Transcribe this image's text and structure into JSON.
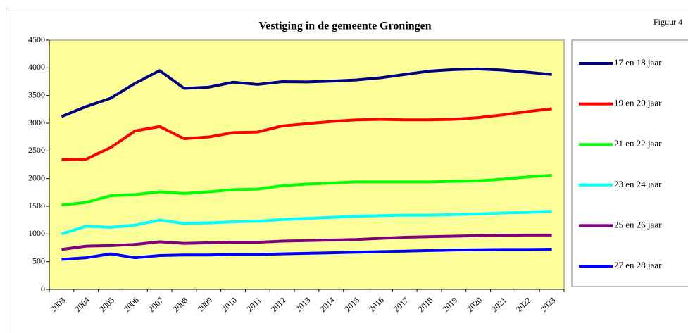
{
  "chart_data": {
    "type": "line",
    "title": "Vestiging in de gemeente Groningen",
    "annotation": "Figuur 4",
    "categories": [
      "2003",
      "2004",
      "2005",
      "2006",
      "2007",
      "2008",
      "2009",
      "2010",
      "2011",
      "2012",
      "2013",
      "2014",
      "2015",
      "2016",
      "2017",
      "2018",
      "2019",
      "2020",
      "2021",
      "2022",
      "2023"
    ],
    "series": [
      {
        "name": "17 en 18 jaar",
        "color": "#000080",
        "values": [
          3120,
          3300,
          3450,
          3720,
          3950,
          3630,
          3650,
          3740,
          3700,
          3750,
          3745,
          3760,
          3780,
          3820,
          3880,
          3940,
          3970,
          3980,
          3960,
          3920,
          3880
        ]
      },
      {
        "name": "19 en 20 jaar",
        "color": "#ff0000",
        "values": [
          2340,
          2350,
          2560,
          2860,
          2940,
          2720,
          2750,
          2830,
          2840,
          2950,
          2990,
          3030,
          3060,
          3070,
          3060,
          3060,
          3070,
          3100,
          3150,
          3210,
          3260
        ]
      },
      {
        "name": "21 en 22 jaar",
        "color": "#00ff00",
        "values": [
          1520,
          1570,
          1690,
          1710,
          1760,
          1730,
          1760,
          1800,
          1810,
          1870,
          1900,
          1920,
          1940,
          1940,
          1940,
          1940,
          1950,
          1960,
          1990,
          2030,
          2060
        ]
      },
      {
        "name": "23 en 24 jaar",
        "color": "#00ffff",
        "values": [
          1000,
          1140,
          1120,
          1160,
          1250,
          1190,
          1200,
          1220,
          1230,
          1260,
          1280,
          1300,
          1320,
          1330,
          1340,
          1340,
          1350,
          1360,
          1380,
          1390,
          1410
        ]
      },
      {
        "name": "25 en 26 jaar",
        "color": "#800080",
        "values": [
          720,
          780,
          790,
          810,
          860,
          830,
          840,
          850,
          850,
          870,
          880,
          890,
          900,
          920,
          940,
          950,
          960,
          970,
          975,
          980,
          980
        ]
      },
      {
        "name": "27 en 28 jaar",
        "color": "#0000ff",
        "values": [
          540,
          570,
          640,
          570,
          610,
          620,
          620,
          630,
          630,
          640,
          650,
          660,
          670,
          680,
          690,
          700,
          710,
          715,
          720,
          720,
          725
        ]
      }
    ],
    "ylim": [
      0,
      4500
    ],
    "yticks": [
      0,
      500,
      1000,
      1500,
      2000,
      2500,
      3000,
      3500,
      4000,
      4500
    ],
    "grid": false,
    "legend": "right",
    "plot_background": "#ffff99"
  }
}
